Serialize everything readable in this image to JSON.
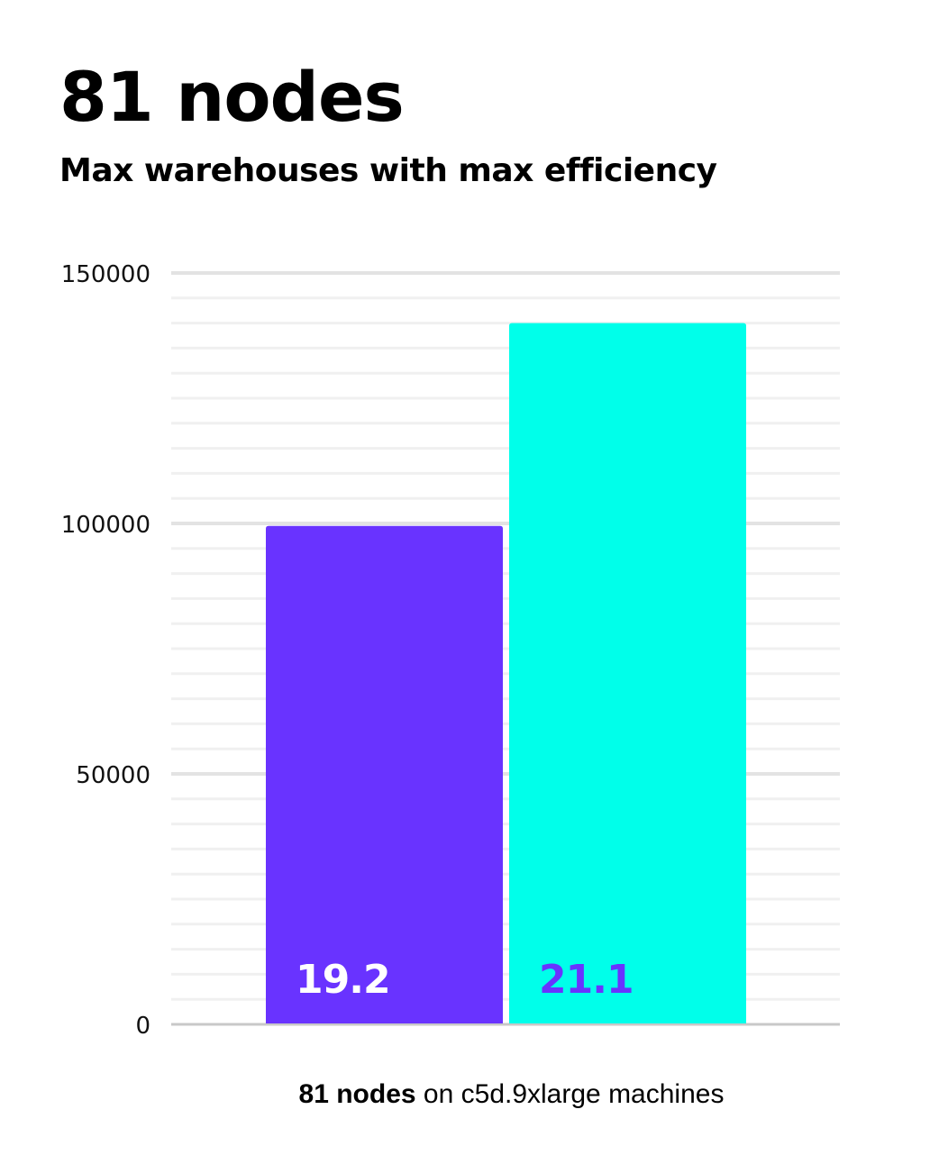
{
  "header": {
    "title": "81 nodes",
    "subtitle": "Max warehouses with max efficiency"
  },
  "caption": {
    "bold": "81 nodes",
    "rest": " on c5d.9xlarge machines"
  },
  "chart_data": {
    "type": "bar",
    "title": "81 nodes",
    "subtitle": "Max warehouses with max efficiency",
    "xlabel": "81 nodes on c5d.9xlarge machines",
    "ylabel": "",
    "ylim": [
      0,
      150000
    ],
    "yticks": [
      0,
      50000,
      100000,
      150000
    ],
    "minor_grid_step": 5000,
    "grid": true,
    "bars": [
      {
        "value": 99500,
        "label": "19.2",
        "color": "#6933FF",
        "label_color": "#FFFFFF"
      },
      {
        "value": 140000,
        "label": "21.1",
        "color": "#00FFEA",
        "label_color": "#6933FF"
      }
    ]
  }
}
